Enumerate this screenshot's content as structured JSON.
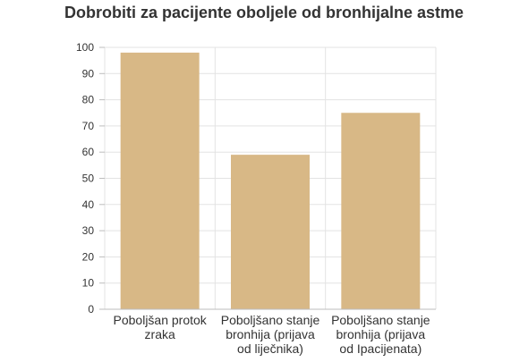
{
  "chart_data": {
    "type": "bar",
    "title": "Dobrobiti za pacijente oboljele od bronhijalne astme",
    "categories": [
      [
        "Poboljšan protok",
        "zraka"
      ],
      [
        "Poboljšano stanje",
        "bronhija (prijava",
        "od liječnika)"
      ],
      [
        "Poboljšano stanje",
        "bronhija (prijava",
        "od Ipacijenata)"
      ]
    ],
    "values": [
      98,
      59,
      75
    ],
    "ylim": [
      0,
      100
    ],
    "yticks": [
      0,
      10,
      20,
      30,
      40,
      50,
      60,
      70,
      80,
      90,
      100
    ],
    "xlabel": "",
    "ylabel": "",
    "grid": true,
    "legend": "none",
    "colors": {
      "bar": "#D8B886",
      "grid": "#E3E3E3",
      "axis": "#BDBDBD",
      "text": "#333333"
    }
  }
}
